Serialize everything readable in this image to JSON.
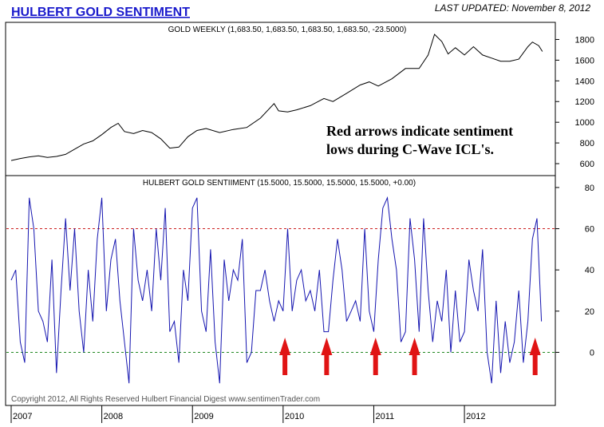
{
  "header": {
    "title": "HULBERT GOLD SENTIMENT",
    "last_updated": "LAST UPDATED:  November 8, 2012"
  },
  "colors": {
    "title": "#1a1acc",
    "gold_line": "#000000",
    "sentiment_line": "#1515b0",
    "upper_ref": "#cc2222",
    "lower_ref": "#228822",
    "arrow": "#e01414",
    "frame": "#000000"
  },
  "annotation": {
    "line1": "Red arrows indicate sentiment",
    "line2": "lows during C-Wave ICL's."
  },
  "copyright": "Copyright 2012, All Rights Reserved  Hulbert Financial Digest  www.sentimenTrader.com",
  "chart_data": [
    {
      "type": "line",
      "label": "GOLD WEEKLY (1,683.50, 1,683.50, 1,683.50, 1,683.50, -23.5000)",
      "y_ticks": [
        600,
        800,
        1000,
        1200,
        1400,
        1600,
        1800
      ],
      "ylim": [
        500,
        1950
      ],
      "x_range": [
        2007.0,
        2012.95
      ],
      "x": [
        2007.0,
        2007.1,
        2007.2,
        2007.3,
        2007.4,
        2007.5,
        2007.6,
        2007.7,
        2007.8,
        2007.9,
        2008.0,
        2008.1,
        2008.18,
        2008.25,
        2008.35,
        2008.45,
        2008.55,
        2008.65,
        2008.75,
        2008.85,
        2008.95,
        2009.05,
        2009.15,
        2009.3,
        2009.45,
        2009.6,
        2009.75,
        2009.9,
        2009.95,
        2010.05,
        2010.15,
        2010.3,
        2010.45,
        2010.55,
        2010.7,
        2010.85,
        2010.95,
        2011.05,
        2011.2,
        2011.35,
        2011.5,
        2011.6,
        2011.67,
        2011.75,
        2011.82,
        2011.9,
        2012.0,
        2012.1,
        2012.2,
        2012.3,
        2012.4,
        2012.5,
        2012.6,
        2012.7,
        2012.75,
        2012.82,
        2012.86
      ],
      "y": [
        630,
        650,
        665,
        675,
        660,
        670,
        690,
        740,
        790,
        820,
        880,
        950,
        990,
        910,
        890,
        920,
        900,
        840,
        750,
        760,
        860,
        920,
        940,
        900,
        930,
        950,
        1040,
        1180,
        1110,
        1100,
        1120,
        1160,
        1230,
        1200,
        1280,
        1360,
        1390,
        1350,
        1420,
        1520,
        1520,
        1650,
        1850,
        1780,
        1660,
        1720,
        1650,
        1730,
        1650,
        1620,
        1590,
        1590,
        1610,
        1730,
        1775,
        1740,
        1684
      ]
    },
    {
      "type": "line",
      "label": "HULBERT GOLD SENTIIMENT (15.5000, 15.5000, 15.5000, 15.5000, +0.00)",
      "y_ticks": [
        0,
        20,
        40,
        60,
        80
      ],
      "ylim": [
        -25,
        85
      ],
      "x_range": [
        2007.0,
        2012.95
      ],
      "x_ticks": [
        "2007",
        "2008",
        "2009",
        "2010",
        "2011",
        "2012"
      ],
      "reference_lines": [
        60,
        0
      ],
      "arrows_at": [
        2010.02,
        2010.48,
        2011.02,
        2011.45,
        2012.78
      ],
      "x": [
        2007.0,
        2007.05,
        2007.1,
        2007.15,
        2007.2,
        2007.25,
        2007.3,
        2007.35,
        2007.4,
        2007.45,
        2007.5,
        2007.55,
        2007.6,
        2007.65,
        2007.7,
        2007.75,
        2007.8,
        2007.85,
        2007.9,
        2007.95,
        2008.0,
        2008.05,
        2008.1,
        2008.15,
        2008.2,
        2008.25,
        2008.3,
        2008.35,
        2008.4,
        2008.45,
        2008.5,
        2008.55,
        2008.6,
        2008.65,
        2008.7,
        2008.75,
        2008.8,
        2008.85,
        2008.9,
        2008.95,
        2009.0,
        2009.05,
        2009.1,
        2009.15,
        2009.2,
        2009.25,
        2009.3,
        2009.35,
        2009.4,
        2009.45,
        2009.5,
        2009.55,
        2009.6,
        2009.65,
        2009.7,
        2009.75,
        2009.8,
        2009.85,
        2009.9,
        2009.95,
        2010.0,
        2010.05,
        2010.1,
        2010.15,
        2010.2,
        2010.25,
        2010.3,
        2010.35,
        2010.4,
        2010.45,
        2010.5,
        2010.55,
        2010.6,
        2010.65,
        2010.7,
        2010.75,
        2010.8,
        2010.85,
        2010.9,
        2010.95,
        2011.0,
        2011.05,
        2011.1,
        2011.15,
        2011.2,
        2011.25,
        2011.3,
        2011.35,
        2011.4,
        2011.45,
        2011.5,
        2011.55,
        2011.6,
        2011.65,
        2011.7,
        2011.75,
        2011.8,
        2011.85,
        2011.9,
        2011.95,
        2012.0,
        2012.05,
        2012.1,
        2012.15,
        2012.2,
        2012.25,
        2012.3,
        2012.35,
        2012.4,
        2012.45,
        2012.5,
        2012.55,
        2012.6,
        2012.65,
        2012.7,
        2012.75,
        2012.8,
        2012.85
      ],
      "y": [
        35,
        40,
        5,
        -5,
        75,
        60,
        20,
        15,
        5,
        45,
        -10,
        30,
        65,
        30,
        60,
        20,
        0,
        40,
        15,
        55,
        75,
        20,
        45,
        55,
        25,
        5,
        -15,
        60,
        35,
        25,
        40,
        20,
        60,
        35,
        70,
        10,
        15,
        -5,
        40,
        25,
        70,
        75,
        20,
        10,
        50,
        5,
        -15,
        45,
        25,
        40,
        35,
        55,
        -5,
        0,
        30,
        30,
        40,
        25,
        15,
        25,
        20,
        60,
        20,
        35,
        40,
        25,
        30,
        20,
        40,
        10,
        10,
        35,
        55,
        40,
        15,
        20,
        25,
        15,
        60,
        20,
        10,
        45,
        70,
        75,
        55,
        40,
        5,
        10,
        65,
        45,
        10,
        65,
        30,
        5,
        25,
        15,
        40,
        0,
        30,
        5,
        10,
        45,
        30,
        20,
        50,
        0,
        -15,
        25,
        -10,
        15,
        -5,
        5,
        30,
        -5,
        15,
        55,
        65,
        15
      ]
    }
  ]
}
